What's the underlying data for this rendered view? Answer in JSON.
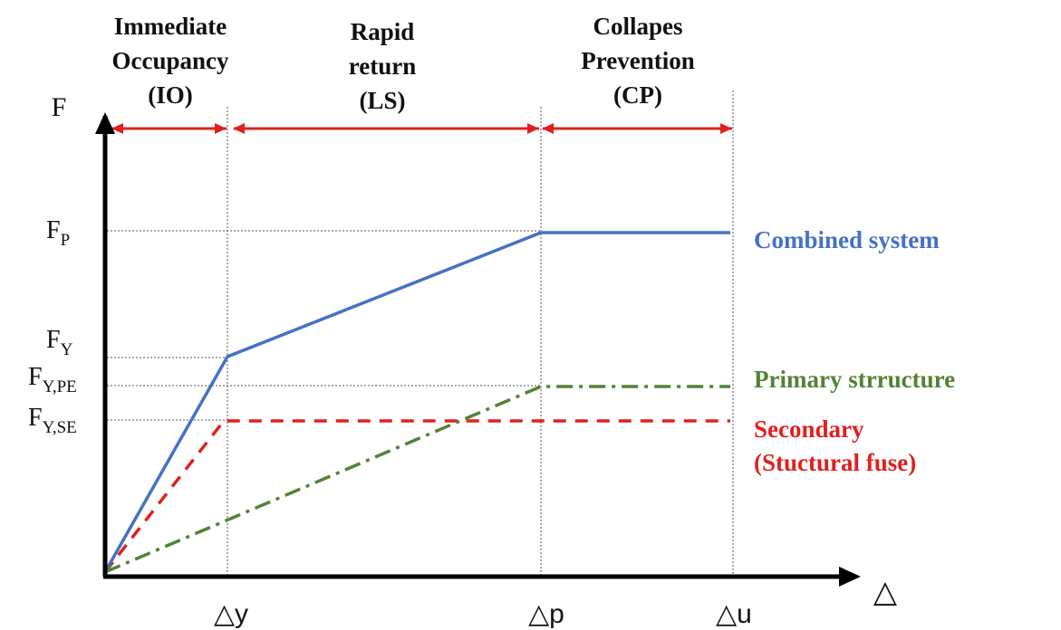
{
  "zones": [
    {
      "lines": [
        "Immediate",
        "Occupancy",
        "(IO)"
      ]
    },
    {
      "lines": [
        "Rapid",
        "return",
        "(LS)"
      ]
    },
    {
      "lines": [
        "Collapes",
        "Prevention",
        "(CP)"
      ]
    }
  ],
  "axes": {
    "y_label": "F",
    "x_label": "△"
  },
  "force_levels": {
    "fp": {
      "main": "F",
      "sub": "P"
    },
    "fy": {
      "main": "F",
      "sub": "Y"
    },
    "fype": {
      "main": "F",
      "sub": "Y,PE"
    },
    "fyse": {
      "main": "F",
      "sub": "Y,SE"
    }
  },
  "displacement_levels": {
    "dy": "△y",
    "dp": "△p",
    "du": "△u"
  },
  "legend": {
    "combined": "Combined system",
    "primary": "Primary strructure",
    "secondary_line1": "Secondary",
    "secondary_line2": "(Stuctural fuse)"
  },
  "colors": {
    "combined": "#4472C4",
    "primary": "#548235",
    "secondary": "#E02020",
    "zone_arrows": "#E02020",
    "axes": "#000000"
  }
}
